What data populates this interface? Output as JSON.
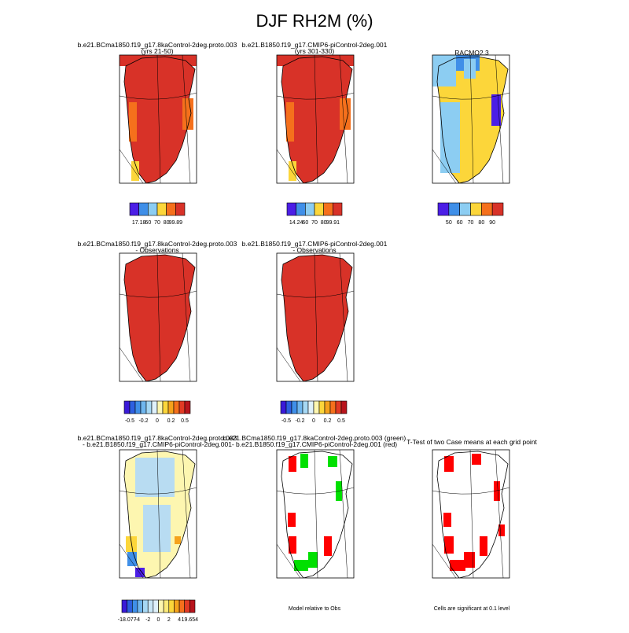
{
  "title": "DJF RH2M (%)",
  "panels": [
    {
      "title": [
        "b.e21.BCma1850.f19_g17.8kaControl-2deg.proto.003",
        "(yrs 21-50)"
      ],
      "fill": "#d83228",
      "colorbar": {
        "colors": [
          "#4b1ee6",
          "#3f8fe8",
          "#8ccdf2",
          "#fcd63a",
          "#f5701c",
          "#d83228"
        ],
        "labels": [
          "17.18",
          "60",
          "70",
          "80",
          "99.89"
        ]
      }
    },
    {
      "title": [
        "b.e21.B1850.f19_g17.CMIP6-piControl-2deg.001",
        "(yrs 301-330)"
      ],
      "fill": "#d83228",
      "colorbar": {
        "colors": [
          "#4b1ee6",
          "#3f8fe8",
          "#8ccdf2",
          "#fcd63a",
          "#f5701c",
          "#d83228"
        ],
        "labels": [
          "14.24",
          "60",
          "70",
          "80",
          "99.91"
        ]
      }
    },
    {
      "title": [
        "RACMO2.3"
      ],
      "fill": "#fcd63a",
      "colorbar": {
        "colors": [
          "#4b1ee6",
          "#3f8fe8",
          "#8ccdf2",
          "#fcd63a",
          "#f5701c",
          "#d83228"
        ],
        "labels": [
          "50",
          "60",
          "70",
          "80",
          "90"
        ]
      }
    },
    {
      "title": [
        "b.e21.BCma1850.f19_g17.8kaControl-2deg.proto.003",
        "- Observations"
      ],
      "fill": "#d83228",
      "colorbar": {
        "colors": [
          "#3a1ad8",
          "#2d5fe0",
          "#3f8fe8",
          "#6fb6ee",
          "#a6d8f4",
          "#dff1fb",
          "#fdf6b0",
          "#fcd63a",
          "#f5a21c",
          "#f5701c",
          "#e23a24",
          "#b8141c"
        ],
        "labels": [
          "-0.5",
          "-0.2",
          "0",
          "0.2",
          "0.5"
        ]
      }
    },
    {
      "title": [
        "b.e21.B1850.f19_g17.CMIP6-piControl-2deg.001",
        "- Observations"
      ],
      "fill": "#d83228",
      "colorbar": {
        "colors": [
          "#3a1ad8",
          "#2d5fe0",
          "#3f8fe8",
          "#6fb6ee",
          "#a6d8f4",
          "#dff1fb",
          "#fdf6b0",
          "#fcd63a",
          "#f5a21c",
          "#f5701c",
          "#e23a24",
          "#b8141c"
        ],
        "labels": [
          "-0.5",
          "-0.2",
          "0",
          "0.2",
          "0.5"
        ]
      }
    },
    {
      "title": [
        "b.e21.BCma1850.f19_g17.8kaControl-2deg.proto.003",
        "- b.e21.B1850.f19_g17.CMIP6-piControl-2deg.001"
      ],
      "fill": "#fdf6b0",
      "colorbar": {
        "colors": [
          "#3a1ad8",
          "#2d5fe0",
          "#3f8fe8",
          "#6fb6ee",
          "#a6d8f4",
          "#c9e7f7",
          "#dff1fb",
          "#fdf6b0",
          "#fcea7a",
          "#fcd63a",
          "#f5a21c",
          "#f5701c",
          "#e23a24",
          "#b8141c"
        ],
        "labels": [
          "-18.077",
          "-4",
          "-2",
          "0",
          "2",
          "4",
          "19.654"
        ]
      }
    },
    {
      "title": [
        "b.e21.BCma1850.f19_g17.8kaControl-2deg.proto.003 (green)",
        "- b.e21.B1850.f19_g17.CMIP6-piControl-2deg.001 (red)"
      ],
      "fill": "#ffffff",
      "note": "Model relative to Obs"
    },
    {
      "title": [
        "T-Test of two Case means at each grid point"
      ],
      "fill": "#ffffff",
      "note": "Cells are significant at 0.1 level"
    }
  ]
}
